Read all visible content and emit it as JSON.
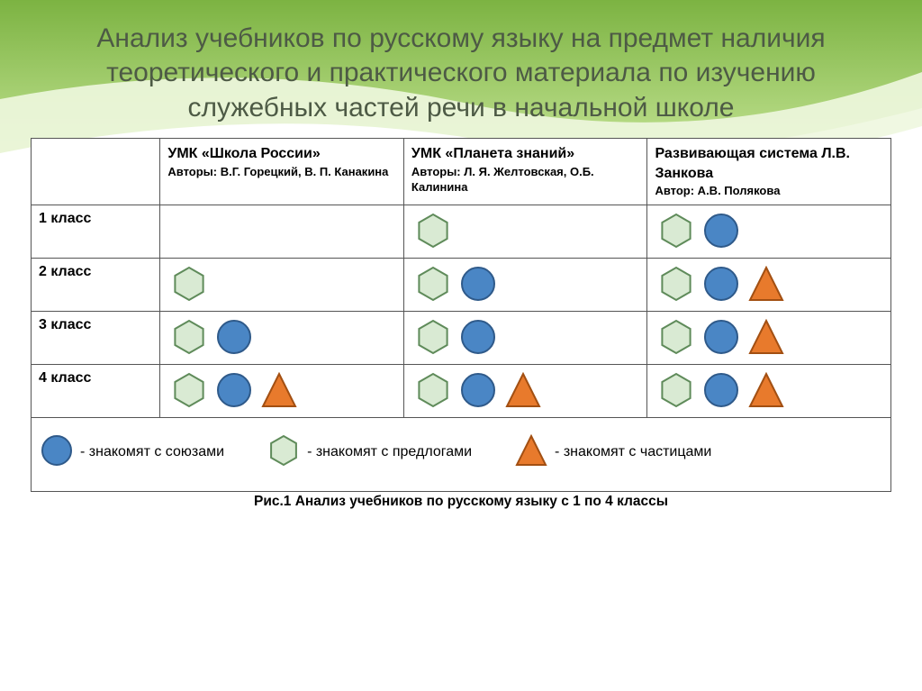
{
  "title": "Анализ учебников по русскому языку на предмет наличия теоретического и практического материала по изучению служебных частей речи в начальной школе",
  "caption": "Рис.1 Анализ учебников по русскому языку  с 1 по 4  классы",
  "background": {
    "gradient_top": "#8bc34a",
    "gradient_mid": "#c9e79a",
    "band_light": "#f4f9ec",
    "page": "#ffffff"
  },
  "shape_defs": {
    "hexagon": {
      "fill": "#d9ead3",
      "stroke": "#5f8b5a",
      "stroke_width": 2
    },
    "circle": {
      "fill": "#4a86c5",
      "stroke": "#2f5a8a",
      "stroke_width": 2
    },
    "triangle": {
      "fill": "#e87a2c",
      "stroke": "#a24f12",
      "stroke_width": 2
    },
    "size": 40
  },
  "columns": [
    {
      "title": "УМК «Школа России»",
      "authors": "Авторы: В.Г. Горецкий, В. П. Канакина"
    },
    {
      "title": "УМК «Планета знаний»",
      "authors": "Авторы: Л. Я. Желтовская, О.Б. Калинина"
    },
    {
      "title": "Развивающая система Л.В. Занкова",
      "authors": "Автор: А.В. Полякова"
    }
  ],
  "rows": [
    {
      "label": "1 класс",
      "cells": [
        [],
        [
          "hexagon"
        ],
        [
          "hexagon",
          "circle"
        ]
      ]
    },
    {
      "label": "2 класс",
      "cells": [
        [
          "hexagon"
        ],
        [
          "hexagon",
          "circle"
        ],
        [
          "hexagon",
          "circle",
          "triangle"
        ]
      ]
    },
    {
      "label": "3 класс",
      "cells": [
        [
          "hexagon",
          "circle"
        ],
        [
          "hexagon",
          "circle"
        ],
        [
          "hexagon",
          "circle",
          "triangle"
        ]
      ]
    },
    {
      "label": "4 класс",
      "cells": [
        [
          "hexagon",
          "circle",
          "triangle"
        ],
        [
          "hexagon",
          "circle",
          "triangle"
        ],
        [
          "hexagon",
          "circle",
          "triangle"
        ]
      ]
    }
  ],
  "legend": [
    {
      "shape": "circle",
      "text": "- знакомят с союзами"
    },
    {
      "shape": "hexagon",
      "text": "- знакомят с предлогами"
    },
    {
      "shape": "triangle",
      "text": "- знакомят с  частицами"
    }
  ]
}
